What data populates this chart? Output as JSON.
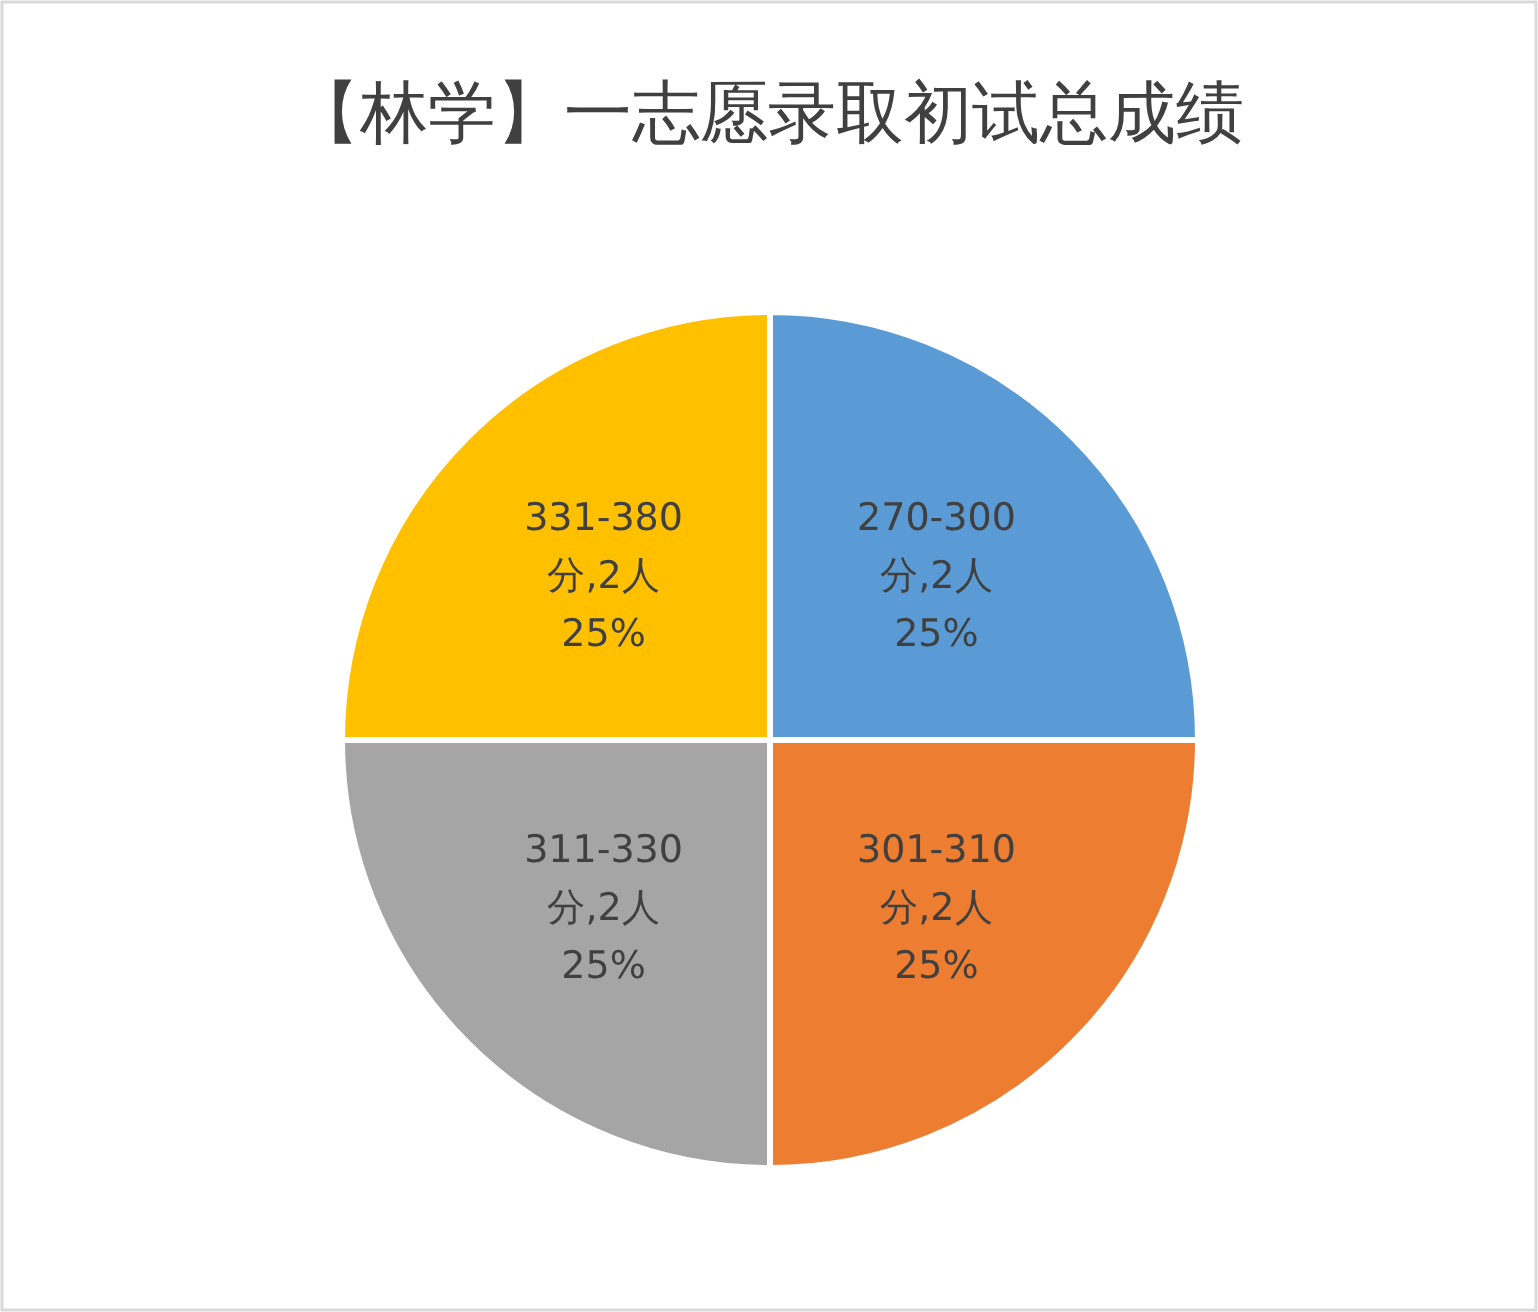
{
  "chart_data": {
    "type": "pie",
    "title": "【林学】一志愿录取初试总成绩",
    "categories": [
      "270-300分",
      "301-310分",
      "311-330分",
      "331-380分"
    ],
    "values": [
      2,
      2,
      2,
      2
    ],
    "value_labels": [
      "2人\n25%",
      "2人\n25%",
      "2人\n25%",
      "2人\n25%"
    ],
    "colors": [
      "#5b9bd5",
      "#ed7d31",
      "#a5a5a5",
      "#ffc000"
    ]
  }
}
